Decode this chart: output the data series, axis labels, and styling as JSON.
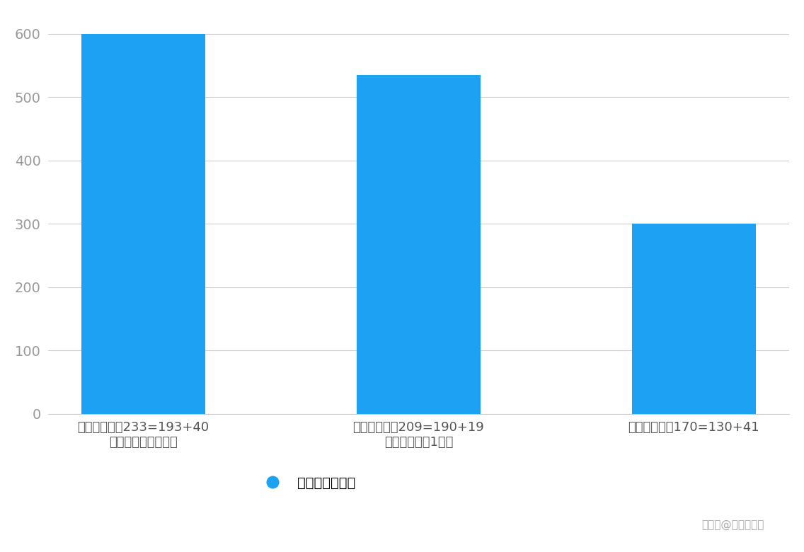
{
  "categories": [
    "战斗冲击力：233=193+40\n（玉壶青冰叠满后）",
    "战斗冲击力：209=190+19\n（燃狱齿轮叠1层）",
    "战斗冲击力：170=130+41"
  ],
  "values": [
    600,
    535,
    300
  ],
  "bar_color": "#1DA1F2",
  "background_color": "#FFFFFF",
  "ylabel_ticks": [
    0,
    100,
    200,
    300,
    400,
    500,
    600
  ],
  "ylim": [
    0,
    630
  ],
  "legend_label": "攻击力提升对比",
  "watermark": "米游社@涡轮陈十四",
  "grid_color": "#CCCCCC",
  "tick_color": "#999999",
  "bar_width": 0.45,
  "label_fontsize": 13,
  "tick_fontsize": 14,
  "legend_fontsize": 14,
  "watermark_fontsize": 11
}
